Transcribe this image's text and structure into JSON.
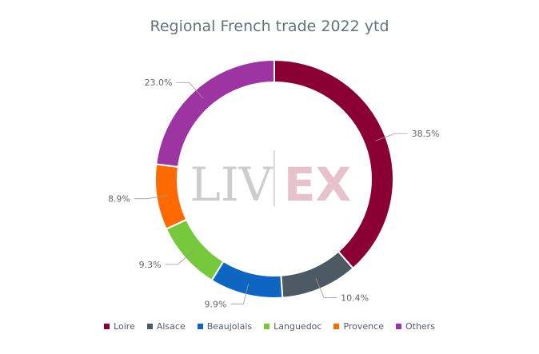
{
  "chart_data": {
    "type": "pie",
    "title": "Regional French trade 2022 ytd",
    "categories": [
      "Loire",
      "Alsace",
      "Beaujolais",
      "Languedoc",
      "Provence",
      "Others"
    ],
    "values": [
      38.5,
      10.4,
      9.9,
      9.3,
      8.9,
      23.0
    ],
    "value_labels": [
      "38.5%",
      "10.4%",
      "9.9%",
      "9.3%",
      "8.9%",
      "23.0%"
    ],
    "colors": [
      "#8b0033",
      "#4d5a63",
      "#0f66c2",
      "#76c93a",
      "#ff6a00",
      "#9c34a1"
    ],
    "donut": true,
    "legend_position": "bottom"
  },
  "watermark": {
    "left": "LIV",
    "right": "EX"
  }
}
